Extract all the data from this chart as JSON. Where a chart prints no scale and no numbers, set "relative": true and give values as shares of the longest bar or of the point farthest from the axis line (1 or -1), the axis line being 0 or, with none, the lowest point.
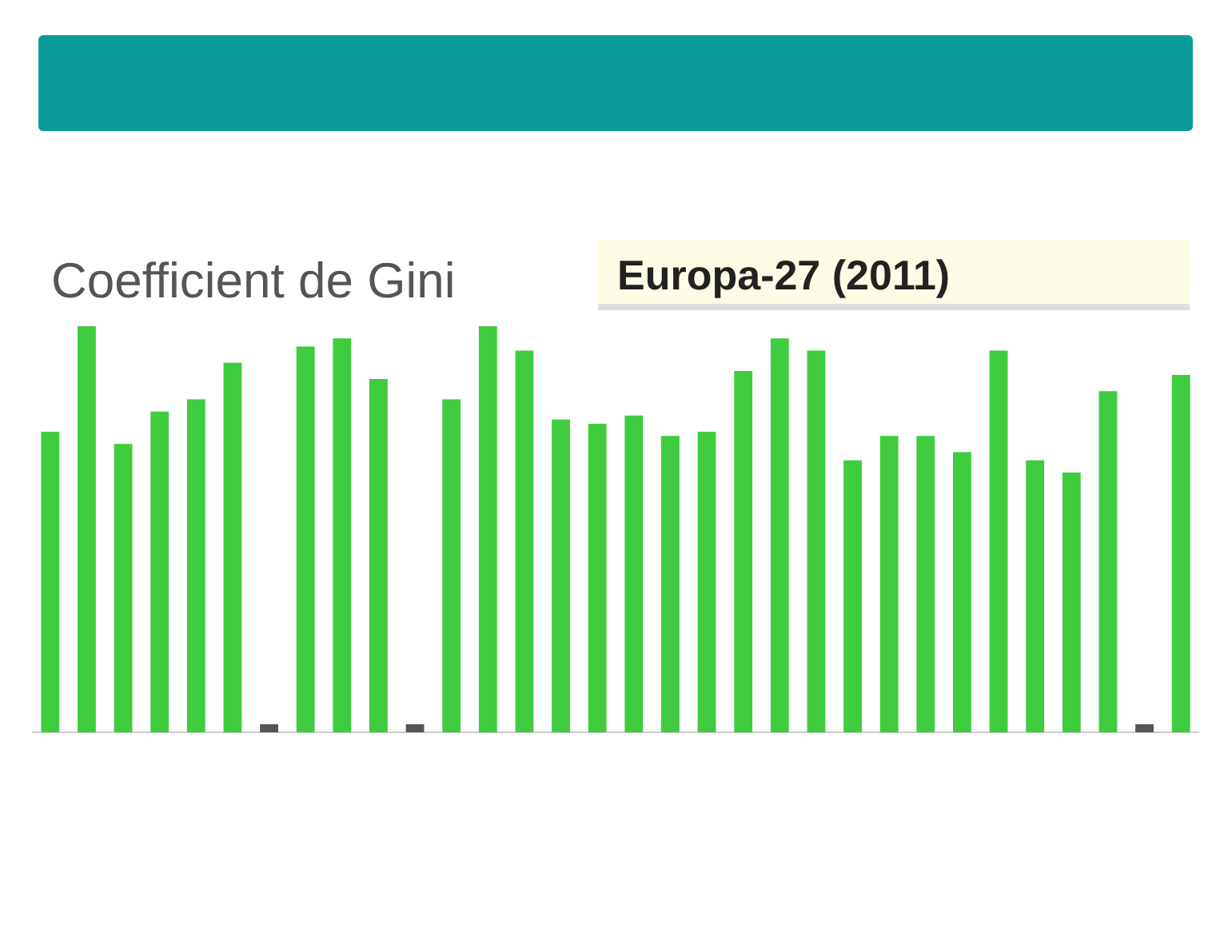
{
  "chart_data": {
    "type": "bar",
    "title": "Coefficient de Gini",
    "subtitle": "Europa-27 (2011)",
    "relative": true,
    "categories": [
      null,
      null,
      null,
      null,
      null,
      null,
      null,
      null,
      null,
      null,
      null,
      null,
      null,
      null,
      null,
      null,
      null,
      null,
      null,
      null,
      null,
      null,
      null,
      null,
      null,
      null,
      null,
      null,
      null,
      null,
      null,
      null
    ],
    "values": [
      0.74,
      1.0,
      0.71,
      0.79,
      0.82,
      0.91,
      0.02,
      0.95,
      0.97,
      0.87,
      0.02,
      0.82,
      1.0,
      0.94,
      0.77,
      0.76,
      0.78,
      0.73,
      0.74,
      0.89,
      0.97,
      0.94,
      0.67,
      0.73,
      0.73,
      0.69,
      0.94,
      0.67,
      0.64,
      0.84,
      0.02,
      0.88
    ],
    "colors": [
      "#3fcc3f",
      "#3fcc3f",
      "#3fcc3f",
      "#3fcc3f",
      "#3fcc3f",
      "#3fcc3f",
      "#555555",
      "#3fcc3f",
      "#3fcc3f",
      "#3fcc3f",
      "#555555",
      "#3fcc3f",
      "#3fcc3f",
      "#3fcc3f",
      "#3fcc3f",
      "#3fcc3f",
      "#3fcc3f",
      "#3fcc3f",
      "#3fcc3f",
      "#3fcc3f",
      "#3fcc3f",
      "#3fcc3f",
      "#3fcc3f",
      "#3fcc3f",
      "#3fcc3f",
      "#3fcc3f",
      "#3fcc3f",
      "#3fcc3f",
      "#3fcc3f",
      "#3fcc3f",
      "#555555",
      "#3fcc3f"
    ],
    "grid": false,
    "legend": false
  }
}
